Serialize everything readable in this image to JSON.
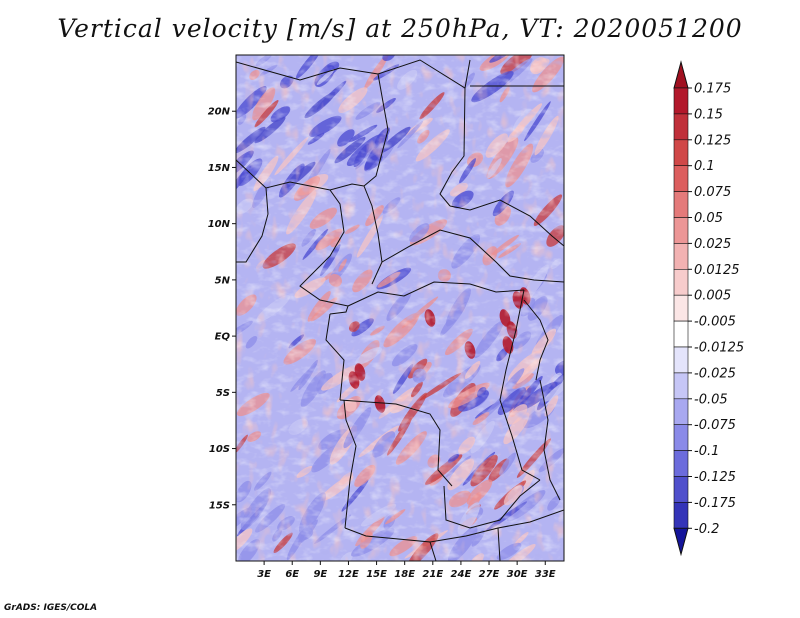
{
  "title": "Vertical velocity [m/s] at 250hPa, VT: 2020051200",
  "credit": "GrADS: IGES/COLA",
  "map": {
    "lon_range": [
      0,
      35
    ],
    "lat_range": [
      -20,
      25
    ],
    "lat_ticks": [
      {
        "value": 20,
        "label": "20N"
      },
      {
        "value": 15,
        "label": "15N"
      },
      {
        "value": 10,
        "label": "10N"
      },
      {
        "value": 5,
        "label": "5N"
      },
      {
        "value": 0,
        "label": "EQ"
      },
      {
        "value": -5,
        "label": "5S"
      },
      {
        "value": -10,
        "label": "10S"
      },
      {
        "value": -15,
        "label": "15S"
      }
    ],
    "lon_ticks": [
      {
        "value": 3,
        "label": "3E"
      },
      {
        "value": 6,
        "label": "6E"
      },
      {
        "value": 9,
        "label": "9E"
      },
      {
        "value": 12,
        "label": "12E"
      },
      {
        "value": 15,
        "label": "15E"
      },
      {
        "value": 18,
        "label": "18E"
      },
      {
        "value": 21,
        "label": "21E"
      },
      {
        "value": 24,
        "label": "24E"
      },
      {
        "value": 27,
        "label": "27E"
      },
      {
        "value": 30,
        "label": "30E"
      },
      {
        "value": 33,
        "label": "33E"
      }
    ]
  },
  "colorbar": {
    "levels": [
      {
        "label": "0.175",
        "color": "#b2182b"
      },
      {
        "label": "0.15",
        "color": "#c0303a"
      },
      {
        "label": "0.125",
        "color": "#d04848"
      },
      {
        "label": "0.1",
        "color": "#dc5e5e"
      },
      {
        "label": "0.075",
        "color": "#e47a7a"
      },
      {
        "label": "0.05",
        "color": "#ec9696"
      },
      {
        "label": "0.025",
        "color": "#f2b2b2"
      },
      {
        "label": "0.0125",
        "color": "#f7cccc"
      },
      {
        "label": "0.005",
        "color": "#fbe6e6"
      },
      {
        "label": "-0.005",
        "color": "#ffffff"
      },
      {
        "label": "-0.0125",
        "color": "#e4e4fb"
      },
      {
        "label": "-0.025",
        "color": "#c6c6f6"
      },
      {
        "label": "-0.05",
        "color": "#a8a8f0"
      },
      {
        "label": "-0.075",
        "color": "#8a8ae8"
      },
      {
        "label": "-0.1",
        "color": "#6c6cdc"
      },
      {
        "label": "-0.125",
        "color": "#5050cc"
      },
      {
        "label": "-0.175",
        "color": "#3434b8"
      },
      {
        "label": "-0.2",
        "color": "#1c1ca0"
      }
    ],
    "top_color": "#a01020",
    "bottom_color": "#14149a"
  },
  "colors": {
    "up_strong": "#c83a3a",
    "up_mid": "#ec9090",
    "up_weak": "#f6c4c4",
    "down_weak": "#c8c8f4",
    "down_mid": "#8e8ee8",
    "down_strong": "#4a4ad0",
    "border": "#111111"
  }
}
